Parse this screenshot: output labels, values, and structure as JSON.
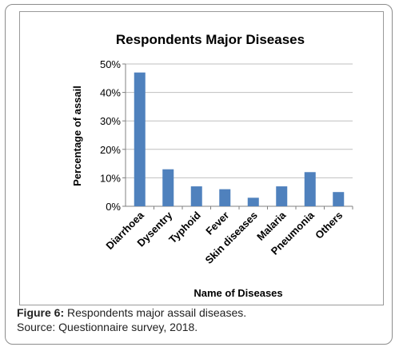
{
  "caption": {
    "figure_label": "Figure 6:",
    "figure_text": " Respondents major assail diseases.",
    "source": "Source: Questionnaire survey, 2018."
  },
  "colors": {
    "bar": "#4f81bd",
    "grid": "#bfbfbf",
    "axis": "#808080",
    "text": "#000000"
  },
  "chart_data": {
    "type": "bar",
    "title": "Respondents Major Diseases",
    "xlabel": "Name of Diseases",
    "ylabel": "Percentage of assail",
    "categories": [
      "Diarrhoea",
      "Dysentry",
      "Typhoid",
      "Fever",
      "Skin diseases",
      "Malaria",
      "Pneumonia",
      "Others"
    ],
    "values": [
      47,
      13,
      7,
      6,
      3,
      7,
      12,
      5
    ],
    "unit": "%",
    "ylim": [
      0,
      50
    ],
    "yticks": [
      0,
      10,
      20,
      30,
      40,
      50
    ],
    "ytick_labels": [
      "0%",
      "10%",
      "20%",
      "30%",
      "40%",
      "50%"
    ],
    "grid": true,
    "legend": "none"
  }
}
